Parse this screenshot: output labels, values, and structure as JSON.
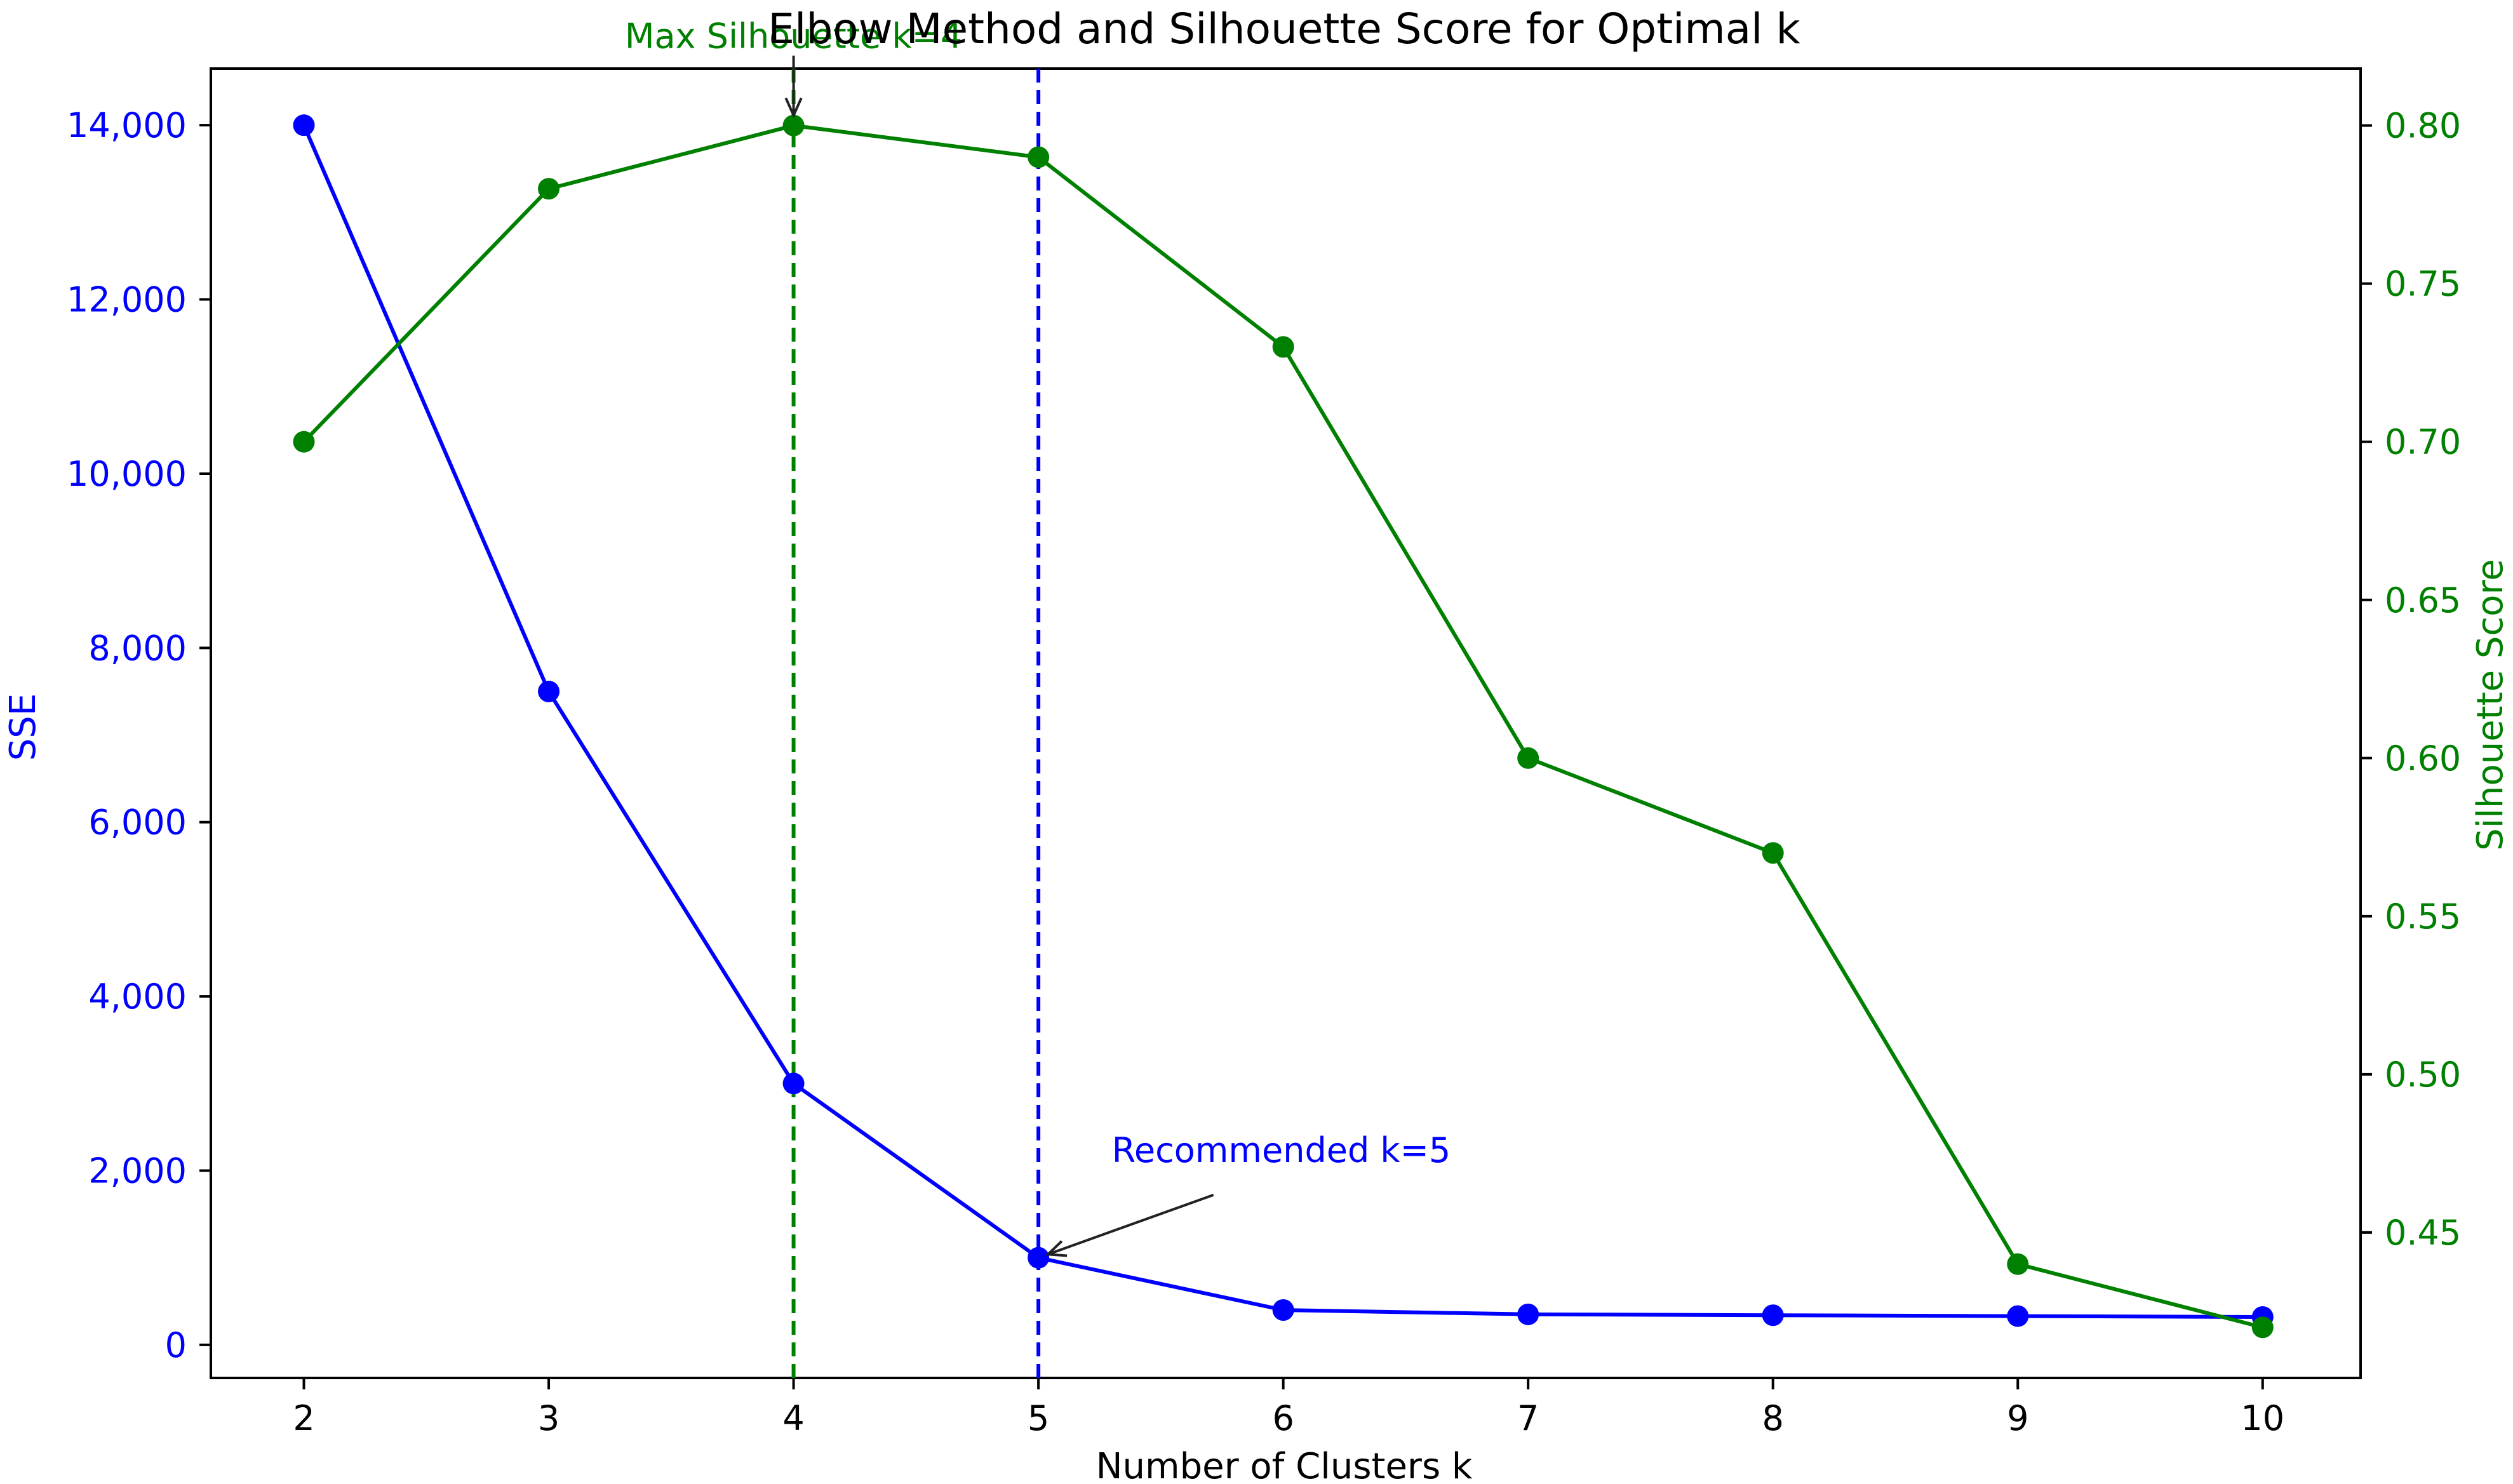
{
  "chart_data": {
    "type": "line",
    "title": "Elbow Method and Silhouette Score for Optimal k",
    "xlabel": "Number of Clusters k",
    "ylabel_left": "SSE",
    "ylabel_right": "Silhouette Score",
    "x": [
      2,
      3,
      4,
      5,
      6,
      7,
      8,
      9,
      10
    ],
    "x_ticks": [
      "2",
      "3",
      "4",
      "5",
      "6",
      "7",
      "8",
      "9",
      "10"
    ],
    "xlim": [
      1.62,
      10.4
    ],
    "ylim_left": [
      -380,
      14650
    ],
    "ylim_right": [
      0.404,
      0.818
    ],
    "y_ticks_left": [
      {
        "value": 0,
        "label": "0"
      },
      {
        "value": 2000,
        "label": "2,000"
      },
      {
        "value": 4000,
        "label": "4,000"
      },
      {
        "value": 6000,
        "label": "6,000"
      },
      {
        "value": 8000,
        "label": "8,000"
      },
      {
        "value": 10000,
        "label": "10,000"
      },
      {
        "value": 12000,
        "label": "12,000"
      },
      {
        "value": 14000,
        "label": "14,000"
      }
    ],
    "y_ticks_right": [
      {
        "value": 0.45,
        "label": "0.45"
      },
      {
        "value": 0.5,
        "label": "0.50"
      },
      {
        "value": 0.55,
        "label": "0.55"
      },
      {
        "value": 0.6,
        "label": "0.60"
      },
      {
        "value": 0.65,
        "label": "0.65"
      },
      {
        "value": 0.7,
        "label": "0.70"
      },
      {
        "value": 0.75,
        "label": "0.75"
      },
      {
        "value": 0.8,
        "label": "0.80"
      }
    ],
    "series": [
      {
        "name": "SSE",
        "axis": "left",
        "color": "#0000ff",
        "values": [
          14000,
          7500,
          3000,
          1000,
          400,
          350,
          340,
          330,
          320
        ]
      },
      {
        "name": "Silhouette Score",
        "axis": "right",
        "color": "#008000",
        "values": [
          0.7,
          0.78,
          0.8,
          0.79,
          0.73,
          0.6,
          0.57,
          0.44,
          0.42
        ]
      }
    ],
    "vlines": [
      {
        "x": 4,
        "color": "#008000",
        "style": "dashed"
      },
      {
        "x": 5,
        "color": "#0000ff",
        "style": "dashed"
      }
    ],
    "annotations": [
      {
        "text": "Max Silhouette k=4",
        "color": "#008000",
        "target_axis": "right",
        "target_x": 4,
        "target_y": 0.8,
        "text_x": 4.0,
        "text_y": 0.8245
      },
      {
        "text": "Recommended k=5",
        "color": "#0000ff",
        "target_axis": "left",
        "target_x": 5,
        "target_y": 1000,
        "text_x": 5.3,
        "text_y": 2100
      }
    ],
    "left_axis_color": "#0000ff",
    "right_axis_color": "#008000",
    "grid": false
  }
}
